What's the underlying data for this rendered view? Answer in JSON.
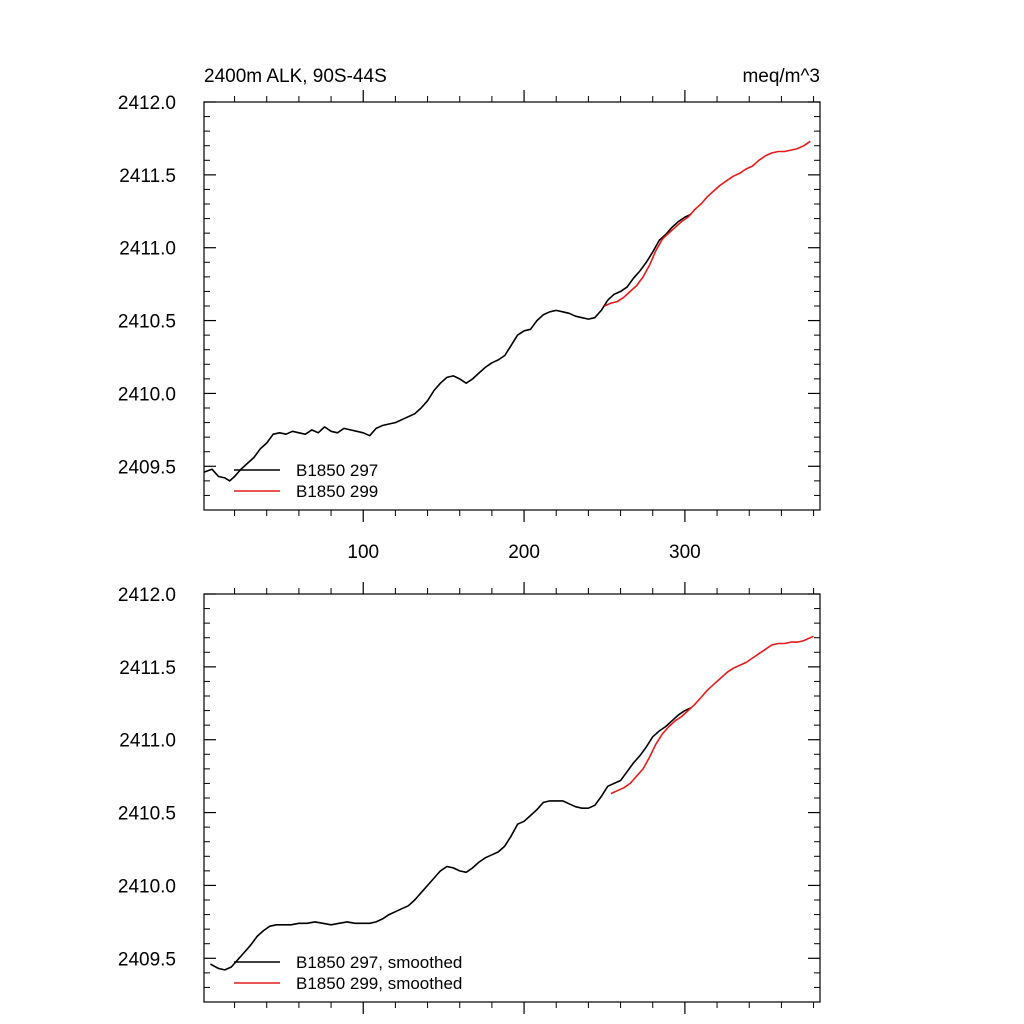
{
  "chart_data": [
    {
      "type": "line",
      "title": "2400m ALK, 90S-44S",
      "units": "meq/m^3",
      "xlim": [
        1,
        384
      ],
      "ylim": [
        2409.2,
        2412.0
      ],
      "xticks": [
        100,
        200,
        300
      ],
      "yticks": [
        2409.5,
        2410.0,
        2410.5,
        2411.0,
        2411.5,
        2412.0
      ],
      "ytick_labels": [
        "2409.5",
        "2410.0",
        "2410.5",
        "2411.0",
        "2411.5",
        "2412.0"
      ],
      "xtick_labels": [
        "100",
        "200",
        "300"
      ],
      "grid": false,
      "legend": "bottom-left",
      "series": [
        {
          "name": "B1850 297",
          "color": "#000000",
          "points": [
            [
              1,
              2409.46
            ],
            [
              6,
              2409.48
            ],
            [
              10,
              2409.43
            ],
            [
              14,
              2409.42
            ],
            [
              17,
              2409.4
            ],
            [
              20,
              2409.43
            ],
            [
              24,
              2409.48
            ],
            [
              28,
              2409.52
            ],
            [
              32,
              2409.56
            ],
            [
              36,
              2409.62
            ],
            [
              40,
              2409.66
            ],
            [
              44,
              2409.72
            ],
            [
              48,
              2409.73
            ],
            [
              52,
              2409.72
            ],
            [
              56,
              2409.74
            ],
            [
              60,
              2409.73
            ],
            [
              64,
              2409.72
            ],
            [
              68,
              2409.75
            ],
            [
              72,
              2409.73
            ],
            [
              76,
              2409.77
            ],
            [
              80,
              2409.74
            ],
            [
              84,
              2409.73
            ],
            [
              88,
              2409.76
            ],
            [
              92,
              2409.75
            ],
            [
              96,
              2409.74
            ],
            [
              100,
              2409.73
            ],
            [
              104,
              2409.71
            ],
            [
              108,
              2409.76
            ],
            [
              112,
              2409.78
            ],
            [
              116,
              2409.79
            ],
            [
              120,
              2409.8
            ],
            [
              124,
              2409.82
            ],
            [
              128,
              2409.84
            ],
            [
              132,
              2409.86
            ],
            [
              136,
              2409.9
            ],
            [
              140,
              2409.95
            ],
            [
              144,
              2410.02
            ],
            [
              148,
              2410.07
            ],
            [
              152,
              2410.11
            ],
            [
              156,
              2410.12
            ],
            [
              160,
              2410.1
            ],
            [
              164,
              2410.07
            ],
            [
              168,
              2410.1
            ],
            [
              172,
              2410.14
            ],
            [
              176,
              2410.18
            ],
            [
              180,
              2410.21
            ],
            [
              184,
              2410.23
            ],
            [
              188,
              2410.26
            ],
            [
              192,
              2410.33
            ],
            [
              196,
              2410.4
            ],
            [
              200,
              2410.43
            ],
            [
              204,
              2410.44
            ],
            [
              208,
              2410.5
            ],
            [
              212,
              2410.54
            ],
            [
              216,
              2410.56
            ],
            [
              220,
              2410.57
            ],
            [
              224,
              2410.56
            ],
            [
              228,
              2410.55
            ],
            [
              232,
              2410.53
            ],
            [
              236,
              2410.52
            ],
            [
              240,
              2410.51
            ],
            [
              244,
              2410.52
            ],
            [
              248,
              2410.57
            ],
            [
              252,
              2410.64
            ],
            [
              256,
              2410.68
            ],
            [
              260,
              2410.7
            ],
            [
              264,
              2410.73
            ],
            [
              268,
              2410.79
            ],
            [
              272,
              2410.84
            ],
            [
              276,
              2410.9
            ],
            [
              280,
              2410.97
            ],
            [
              284,
              2411.05
            ],
            [
              288,
              2411.09
            ],
            [
              292,
              2411.14
            ],
            [
              296,
              2411.18
            ],
            [
              300,
              2411.21
            ],
            [
              304,
              2411.23
            ]
          ]
        },
        {
          "name": "B1850 299",
          "color": "#e41a1c",
          "points": [
            [
              250,
              2410.6
            ],
            [
              254,
              2410.62
            ],
            [
              258,
              2410.63
            ],
            [
              262,
              2410.66
            ],
            [
              266,
              2410.7
            ],
            [
              270,
              2410.74
            ],
            [
              274,
              2410.8
            ],
            [
              278,
              2410.88
            ],
            [
              282,
              2410.98
            ],
            [
              286,
              2411.06
            ],
            [
              290,
              2411.1
            ],
            [
              294,
              2411.14
            ],
            [
              298,
              2411.18
            ],
            [
              302,
              2411.21
            ],
            [
              306,
              2411.26
            ],
            [
              310,
              2411.3
            ],
            [
              314,
              2411.35
            ],
            [
              318,
              2411.39
            ],
            [
              322,
              2411.43
            ],
            [
              326,
              2411.46
            ],
            [
              330,
              2411.49
            ],
            [
              334,
              2411.51
            ],
            [
              338,
              2411.54
            ],
            [
              342,
              2411.56
            ],
            [
              346,
              2411.6
            ],
            [
              350,
              2411.63
            ],
            [
              354,
              2411.65
            ],
            [
              358,
              2411.66
            ],
            [
              362,
              2411.66
            ],
            [
              366,
              2411.67
            ],
            [
              370,
              2411.68
            ],
            [
              374,
              2411.7
            ],
            [
              378,
              2411.73
            ]
          ]
        }
      ]
    },
    {
      "type": "line",
      "xlim": [
        1,
        384
      ],
      "ylim": [
        2409.2,
        2412.0
      ],
      "xticks": [
        100,
        200,
        300
      ],
      "yticks": [
        2409.5,
        2410.0,
        2410.5,
        2411.0,
        2411.5,
        2412.0
      ],
      "ytick_labels": [
        "2409.5",
        "2410.0",
        "2410.5",
        "2411.0",
        "2411.5",
        "2412.0"
      ],
      "grid": false,
      "legend": "bottom-left",
      "series": [
        {
          "name": "B1850 297, smoothed",
          "color": "#000000",
          "points": [
            [
              5,
              2409.46
            ],
            [
              10,
              2409.43
            ],
            [
              14,
              2409.42
            ],
            [
              18,
              2409.44
            ],
            [
              22,
              2409.49
            ],
            [
              26,
              2409.54
            ],
            [
              30,
              2409.59
            ],
            [
              34,
              2409.65
            ],
            [
              38,
              2409.69
            ],
            [
              42,
              2409.72
            ],
            [
              46,
              2409.73
            ],
            [
              50,
              2409.73
            ],
            [
              55,
              2409.73
            ],
            [
              60,
              2409.74
            ],
            [
              65,
              2409.74
            ],
            [
              70,
              2409.75
            ],
            [
              75,
              2409.74
            ],
            [
              80,
              2409.73
            ],
            [
              85,
              2409.74
            ],
            [
              90,
              2409.75
            ],
            [
              95,
              2409.74
            ],
            [
              100,
              2409.74
            ],
            [
              104,
              2409.74
            ],
            [
              108,
              2409.75
            ],
            [
              112,
              2409.77
            ],
            [
              116,
              2409.8
            ],
            [
              120,
              2409.82
            ],
            [
              124,
              2409.84
            ],
            [
              128,
              2409.86
            ],
            [
              132,
              2409.9
            ],
            [
              136,
              2409.95
            ],
            [
              140,
              2410.0
            ],
            [
              144,
              2410.05
            ],
            [
              148,
              2410.1
            ],
            [
              152,
              2410.13
            ],
            [
              156,
              2410.12
            ],
            [
              160,
              2410.1
            ],
            [
              164,
              2410.09
            ],
            [
              168,
              2410.12
            ],
            [
              172,
              2410.16
            ],
            [
              176,
              2410.19
            ],
            [
              180,
              2410.21
            ],
            [
              184,
              2410.23
            ],
            [
              188,
              2410.27
            ],
            [
              192,
              2410.34
            ],
            [
              196,
              2410.42
            ],
            [
              200,
              2410.44
            ],
            [
              204,
              2410.48
            ],
            [
              208,
              2410.52
            ],
            [
              212,
              2410.57
            ],
            [
              216,
              2410.58
            ],
            [
              220,
              2410.58
            ],
            [
              224,
              2410.58
            ],
            [
              228,
              2410.56
            ],
            [
              232,
              2410.54
            ],
            [
              236,
              2410.53
            ],
            [
              240,
              2410.53
            ],
            [
              244,
              2410.55
            ],
            [
              248,
              2410.61
            ],
            [
              252,
              2410.68
            ],
            [
              256,
              2410.7
            ],
            [
              260,
              2410.72
            ],
            [
              264,
              2410.78
            ],
            [
              268,
              2410.84
            ],
            [
              272,
              2410.89
            ],
            [
              276,
              2410.95
            ],
            [
              280,
              2411.02
            ],
            [
              284,
              2411.06
            ],
            [
              288,
              2411.09
            ],
            [
              292,
              2411.13
            ],
            [
              296,
              2411.17
            ],
            [
              300,
              2411.2
            ],
            [
              304,
              2411.22
            ]
          ]
        },
        {
          "name": "B1850 299, smoothed",
          "color": "#e41a1c",
          "points": [
            [
              254,
              2410.63
            ],
            [
              258,
              2410.65
            ],
            [
              262,
              2410.67
            ],
            [
              266,
              2410.7
            ],
            [
              270,
              2410.75
            ],
            [
              274,
              2410.8
            ],
            [
              278,
              2410.88
            ],
            [
              282,
              2410.97
            ],
            [
              286,
              2411.04
            ],
            [
              290,
              2411.09
            ],
            [
              294,
              2411.13
            ],
            [
              298,
              2411.16
            ],
            [
              302,
              2411.2
            ],
            [
              306,
              2411.24
            ],
            [
              310,
              2411.29
            ],
            [
              314,
              2411.34
            ],
            [
              318,
              2411.38
            ],
            [
              322,
              2411.42
            ],
            [
              326,
              2411.46
            ],
            [
              330,
              2411.49
            ],
            [
              334,
              2411.51
            ],
            [
              338,
              2411.53
            ],
            [
              342,
              2411.56
            ],
            [
              346,
              2411.59
            ],
            [
              350,
              2411.62
            ],
            [
              354,
              2411.65
            ],
            [
              358,
              2411.66
            ],
            [
              362,
              2411.66
            ],
            [
              366,
              2411.67
            ],
            [
              370,
              2411.67
            ],
            [
              374,
              2411.68
            ],
            [
              378,
              2411.7
            ],
            [
              380,
              2411.71
            ]
          ]
        }
      ]
    }
  ]
}
